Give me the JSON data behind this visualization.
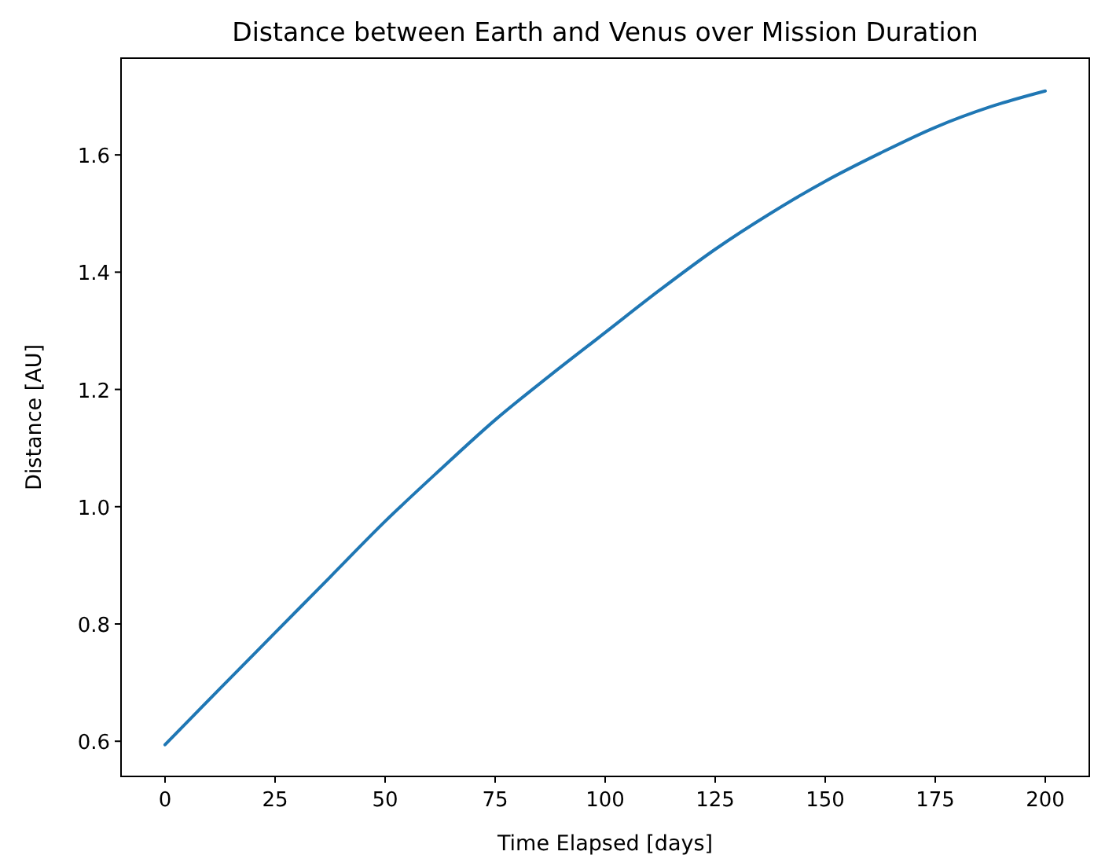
{
  "chart_data": {
    "type": "line",
    "title": "Distance between Earth and Venus over Mission Duration",
    "xlabel": "Time Elapsed [days]",
    "ylabel": "Distance [AU]",
    "x": [
      0,
      12.5,
      25,
      37.5,
      50,
      62.5,
      75,
      87.5,
      100,
      112.5,
      125,
      137.5,
      150,
      162.5,
      175,
      187.5,
      200
    ],
    "series": [
      {
        "color": "#1f77b4",
        "values": [
          0.594,
          0.69,
          0.785,
          0.88,
          0.975,
          1.063,
          1.148,
          1.224,
          1.297,
          1.37,
          1.439,
          1.5,
          1.555,
          1.603,
          1.647,
          1.682,
          1.709
        ]
      }
    ],
    "xlim": [
      -10,
      210
    ],
    "ylim": [
      0.54,
      1.765
    ],
    "xticks": [
      0,
      25,
      50,
      75,
      100,
      125,
      150,
      175,
      200
    ],
    "yticks": [
      0.6,
      0.8,
      {
        "value": 1,
        "label": "1.0"
      },
      1.2,
      1.4,
      1.6
    ],
    "grid": false,
    "marker": "none",
    "line_style": "solid"
  }
}
